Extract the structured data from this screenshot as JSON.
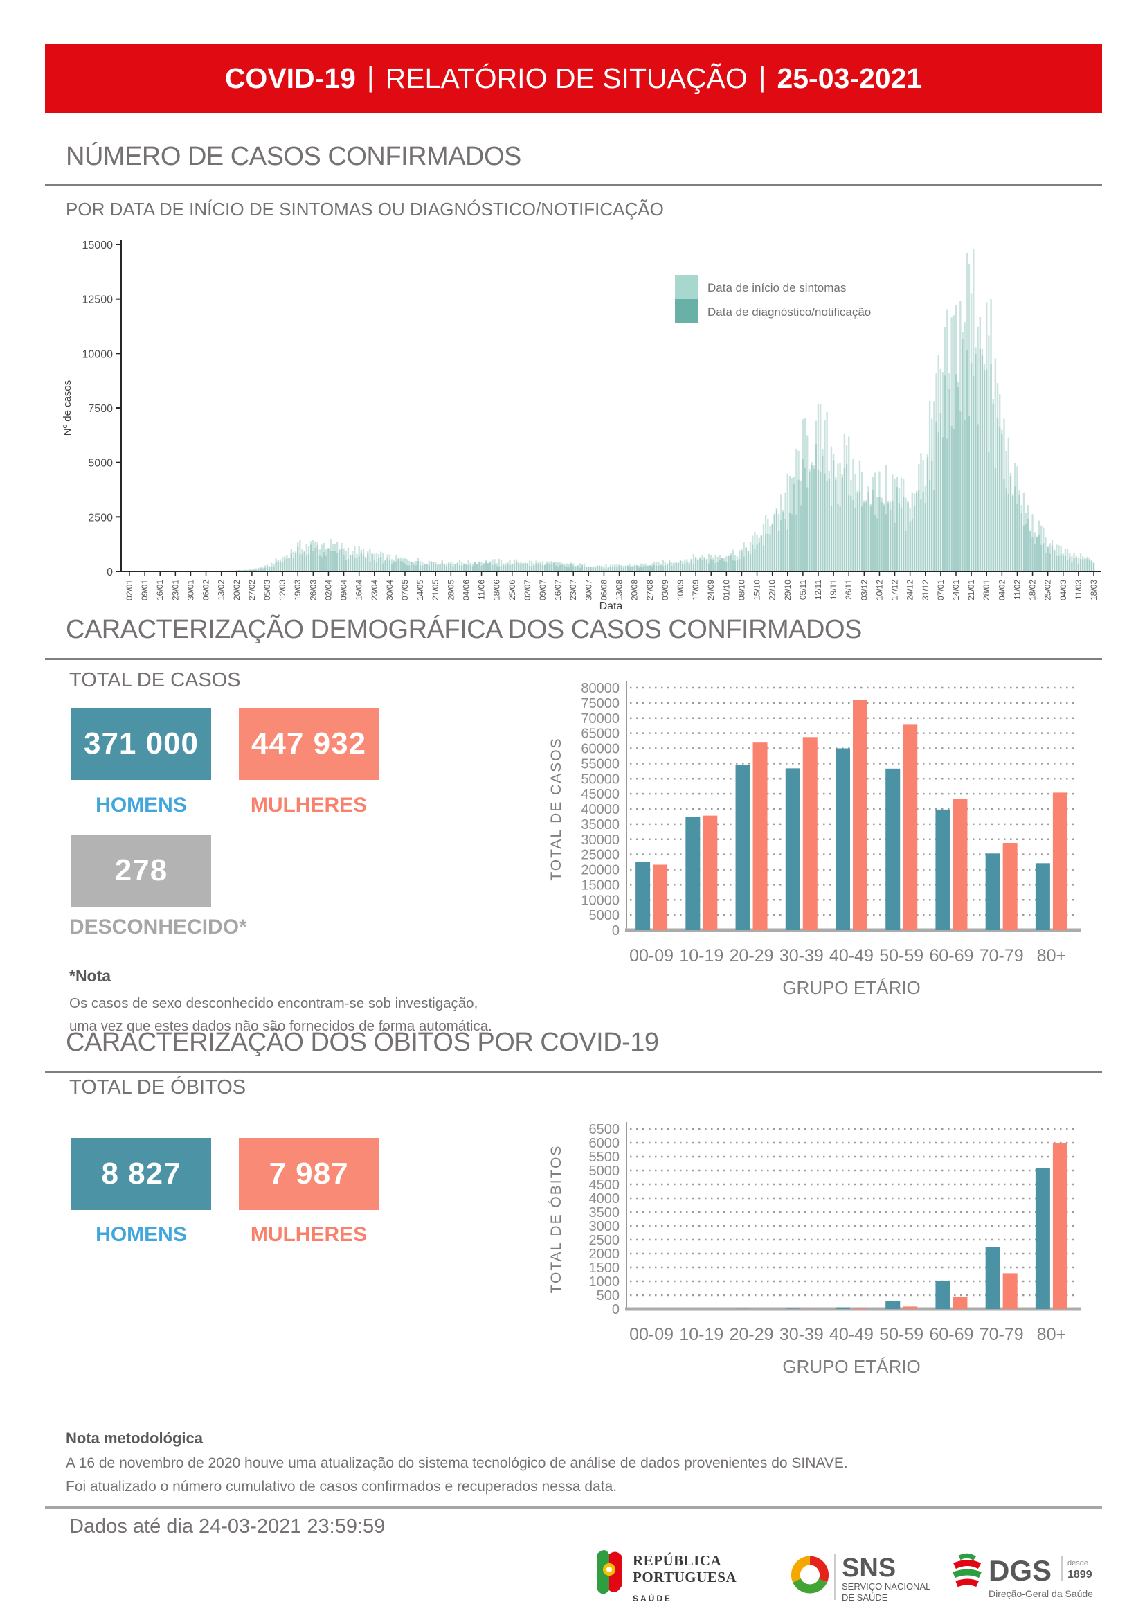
{
  "header": {
    "title_covid": "COVID-19",
    "separator": "|",
    "title_report": "RELATÓRIO DE SITUAÇÃO",
    "date": "25-03-2021"
  },
  "cases_section": {
    "title": "NÚMERO DE CASOS CONFIRMADOS",
    "subtitle": "POR DATA DE INÍCIO DE SINTOMAS OU DIAGNÓSTICO/NOTIFICAÇÃO"
  },
  "demography_section": {
    "title": "CARACTERIZAÇÃO DEMOGRÁFICA DOS CASOS CONFIRMADOS",
    "total_label": "TOTAL DE CASOS",
    "stats": [
      {
        "value": "371 000",
        "label": "HOMENS"
      },
      {
        "value": "447 932",
        "label": "MULHERES"
      },
      {
        "value": "278",
        "label": "DESCONHECIDO*"
      }
    ],
    "note_title": "*Nota",
    "note_line1": "Os casos de sexo desconhecido encontram-se sob investigação,",
    "note_line2": "uma vez que estes dados não são fornecidos de forma automática."
  },
  "deaths_section": {
    "title": "CARACTERIZAÇÃO DOS ÓBITOS POR COVID-19",
    "total_label": "TOTAL DE ÓBITOS",
    "stats": [
      {
        "value": "8 827",
        "label": "HOMENS"
      },
      {
        "value": "7 987",
        "label": "MULHERES"
      }
    ]
  },
  "methodology": {
    "title": "Nota metodológica",
    "line1": "A 16 de novembro de 2020 houve uma atualização do sistema tecnológico de análise de dados provenientes do SINAVE.",
    "line2": "Foi atualizado o número cumulativo de casos confirmados e recuperados nessa data."
  },
  "data_until": "Dados até dia 24-03-2021 23:59:59",
  "logos": {
    "republica": {
      "line1": "REPÚBLICA",
      "line2": "PORTUGUESA",
      "sub": "SAÚDE"
    },
    "sns": {
      "abbr": "SNS",
      "line1": "SERVIÇO NACIONAL",
      "line2": "DE SAÚDE"
    },
    "dgs": {
      "abbr": "DGS",
      "since_word": "desde",
      "since_year": "1899",
      "sub": "Direção-Geral da Saúde"
    }
  },
  "colors": {
    "header_red": "#E00B12",
    "section_title_gray": "#767171",
    "rule_gray": "#7F7F7F",
    "men_teal": "#4D93A6",
    "men_label_blue": "#41A6DC",
    "women_salmon": "#F98B76",
    "unknown_gray": "#B3B3B3",
    "symptoms_mint": "#A8D8CD",
    "notification_teal": "#69B0A6"
  },
  "chart_data": [
    {
      "type": "bar",
      "title": "POR DATA DE INÍCIO DE SINTOMAS OU DIAGNÓSTICO/NOTIFICAÇÃO",
      "xlabel": "Data",
      "ylabel": "Nº de casos",
      "ylim": [
        0,
        15000
      ],
      "ytick_step": 2500,
      "legend_position": "top-right",
      "grid": "none",
      "x_tick_labels": [
        "02/01",
        "09/01",
        "16/01",
        "23/01",
        "30/01",
        "06/02",
        "13/02",
        "20/02",
        "27/02",
        "05/03",
        "12/03",
        "19/03",
        "26/03",
        "02/04",
        "09/04",
        "16/04",
        "23/04",
        "30/04",
        "07/05",
        "14/05",
        "21/05",
        "28/05",
        "04/06",
        "11/06",
        "18/06",
        "25/06",
        "02/07",
        "09/07",
        "16/07",
        "23/07",
        "30/07",
        "06/08",
        "13/08",
        "20/08",
        "27/08",
        "03/09",
        "10/09",
        "17/09",
        "24/09",
        "01/10",
        "08/10",
        "15/10",
        "22/10",
        "29/10",
        "05/11",
        "12/11",
        "19/11",
        "26/11",
        "03/12",
        "10/12",
        "17/12",
        "24/12",
        "31/12",
        "07/01",
        "14/01",
        "21/01",
        "28/01",
        "04/02",
        "11/02",
        "18/02",
        "25/02",
        "04/03",
        "11/03",
        "18/03"
      ],
      "series": [
        {
          "name": "Data de início de sintomas",
          "color": "#A8D8CD",
          "bar_fill": "#CAE3DE",
          "weekly_values": [
            0,
            0,
            0,
            0,
            5,
            15,
            30,
            50,
            90,
            250,
            650,
            1150,
            1300,
            1250,
            1100,
            950,
            800,
            650,
            550,
            500,
            460,
            430,
            430,
            460,
            470,
            460,
            450,
            420,
            370,
            330,
            290,
            260,
            270,
            300,
            330,
            430,
            540,
            660,
            730,
            800,
            980,
            1600,
            2600,
            3700,
            5700,
            6400,
            5700,
            5000,
            4200,
            3800,
            4100,
            3500,
            5300,
            8800,
            11000,
            13600,
            11500,
            6800,
            3900,
            2200,
            1500,
            900,
            700,
            520
          ]
        },
        {
          "name": "Data de diagnóstico/notificação",
          "color": "#69B0A6",
          "bar_fill": "#69B0A6",
          "weekly_values": [
            0,
            0,
            0,
            0,
            5,
            13,
            27,
            45,
            81,
            225,
            585,
            1035,
            1170,
            1125,
            990,
            855,
            720,
            585,
            495,
            450,
            414,
            387,
            387,
            414,
            423,
            414,
            405,
            378,
            333,
            297,
            261,
            234,
            243,
            270,
            297,
            387,
            486,
            594,
            657,
            720,
            882,
            1440,
            2340,
            3330,
            5130,
            5760,
            5130,
            4500,
            3780,
            3420,
            3690,
            3150,
            4770,
            7920,
            9900,
            12240,
            10350,
            6120,
            3510,
            1980,
            1350,
            810,
            630,
            468
          ]
        }
      ]
    },
    {
      "type": "bar",
      "categories": [
        "00-09",
        "10-19",
        "20-29",
        "30-39",
        "40-49",
        "50-59",
        "60-69",
        "70-79",
        "80+"
      ],
      "series": [
        {
          "name": "HOMENS",
          "color": "#4C92A5",
          "values": [
            22600,
            37400,
            54600,
            53400,
            60000,
            53300,
            39800,
            25300,
            22100
          ]
        },
        {
          "name": "MULHERES",
          "color": "#F9836F",
          "values": [
            21600,
            37800,
            61900,
            63700,
            75900,
            67800,
            43200,
            28800,
            45400
          ]
        }
      ],
      "xlabel": "GRUPO ETÁRIO",
      "ylabel": "TOTAL DE CASOS",
      "ylim": [
        0,
        80000
      ],
      "ytick_step": 5000,
      "grid": "dotted-horizontal",
      "legend": false
    },
    {
      "type": "bar",
      "categories": [
        "00-09",
        "10-19",
        "20-29",
        "30-39",
        "40-49",
        "50-59",
        "60-69",
        "70-79",
        "80+"
      ],
      "series": [
        {
          "name": "HOMENS",
          "color": "#4C92A5",
          "values": [
            0,
            0,
            5,
            15,
            60,
            280,
            1020,
            2230,
            5080
          ]
        },
        {
          "name": "MULHERES",
          "color": "#F9836F",
          "values": [
            0,
            0,
            0,
            5,
            25,
            90,
            430,
            1290,
            6000
          ]
        }
      ],
      "xlabel": "GRUPO ETÁRIO",
      "ylabel": "TOTAL DE ÓBITOS",
      "ylim": [
        0,
        6500
      ],
      "ytick_step": 500,
      "grid": "dotted-horizontal",
      "legend": false
    }
  ]
}
